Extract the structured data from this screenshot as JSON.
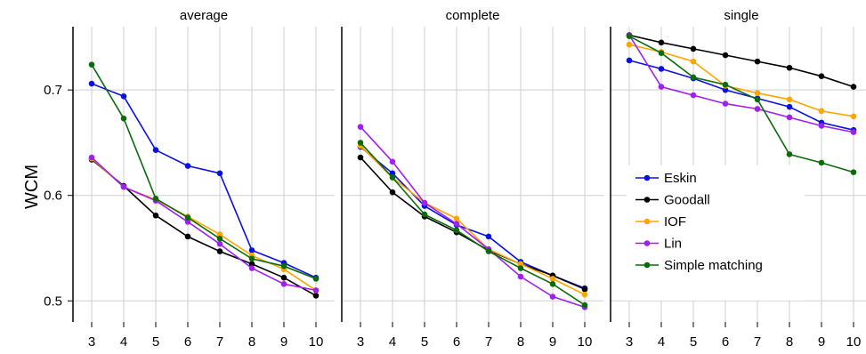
{
  "chart_data": {
    "type": "line",
    "ylabel": "WCM",
    "ylim": [
      0.48,
      0.76
    ],
    "yticks": [
      0.5,
      0.6,
      0.7
    ],
    "x": [
      3,
      4,
      5,
      6,
      7,
      8,
      9,
      10
    ],
    "grid": true,
    "legend": {
      "placement": "bottom-right of the right panel"
    },
    "colors": {
      "Eskin": "#0a10e0",
      "Goodall": "#000000",
      "IOF": "#ffa500",
      "Lin": "#a020f0",
      "Simple matching": "#0b6b0b"
    },
    "panels": [
      {
        "title": "average",
        "series": [
          {
            "name": "Eskin",
            "values": [
              0.706,
              0.694,
              0.643,
              0.628,
              0.621,
              0.548,
              0.536,
              0.522
            ]
          },
          {
            "name": "Goodall",
            "values": [
              0.634,
              0.609,
              0.581,
              0.561,
              0.547,
              0.535,
              0.522,
              0.505
            ]
          },
          {
            "name": "IOF",
            "values": [
              0.635,
              0.608,
              0.596,
              0.58,
              0.563,
              0.543,
              0.53,
              0.51
            ]
          },
          {
            "name": "Lin",
            "values": [
              0.636,
              0.608,
              0.595,
              0.575,
              0.554,
              0.531,
              0.516,
              0.51
            ]
          },
          {
            "name": "Simple matching",
            "values": [
              0.724,
              0.673,
              0.597,
              0.579,
              0.559,
              0.54,
              0.533,
              0.521
            ]
          }
        ]
      },
      {
        "title": "complete",
        "series": [
          {
            "name": "Eskin",
            "values": [
              0.646,
              0.621,
              0.59,
              0.572,
              0.561,
              0.537,
              0.524,
              0.512
            ]
          },
          {
            "name": "Goodall",
            "values": [
              0.636,
              0.603,
              0.58,
              0.565,
              0.548,
              0.535,
              0.524,
              0.511
            ]
          },
          {
            "name": "IOF",
            "values": [
              0.647,
              0.617,
              0.593,
              0.578,
              0.549,
              0.535,
              0.521,
              0.506
            ]
          },
          {
            "name": "Lin",
            "values": [
              0.665,
              0.632,
              0.593,
              0.573,
              0.549,
              0.523,
              0.504,
              0.494
            ]
          },
          {
            "name": "Simple matching",
            "values": [
              0.65,
              0.617,
              0.582,
              0.567,
              0.547,
              0.531,
              0.516,
              0.496
            ]
          }
        ]
      },
      {
        "title": "single",
        "series": [
          {
            "name": "Eskin",
            "values": [
              0.728,
              0.72,
              0.711,
              0.7,
              0.692,
              0.684,
              0.669,
              0.662
            ]
          },
          {
            "name": "Goodall",
            "values": [
              0.752,
              0.745,
              0.739,
              0.733,
              0.727,
              0.721,
              0.713,
              0.703
            ]
          },
          {
            "name": "IOF",
            "values": [
              0.743,
              0.736,
              0.727,
              0.704,
              0.697,
              0.691,
              0.68,
              0.675
            ]
          },
          {
            "name": "Lin",
            "values": [
              0.752,
              0.703,
              0.695,
              0.687,
              0.682,
              0.674,
              0.666,
              0.66
            ]
          },
          {
            "name": "Simple matching",
            "values": [
              0.751,
              0.735,
              0.712,
              0.705,
              0.691,
              0.639,
              0.631,
              0.622
            ]
          }
        ]
      }
    ]
  }
}
